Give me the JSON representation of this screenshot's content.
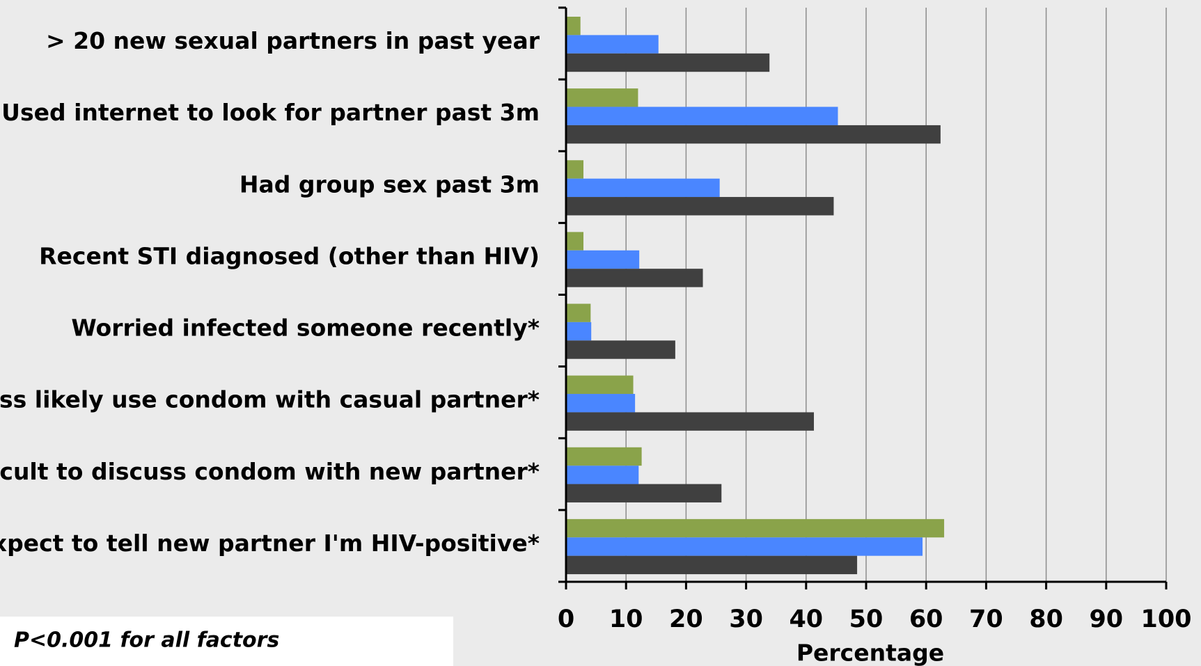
{
  "chart_data": {
    "type": "hbar",
    "categories": [
      "> 20 new sexual partners in past year",
      "Used internet to look for partner past 3m",
      "Had group sex past 3m",
      "Recent STI diagnosed (other than HIV)",
      "Worried infected someone recently*",
      "Less likely use condom with casual partner*",
      "Difficult to discuss condom with new partner*",
      "Expect to tell new partner I'm HIV-positive*"
    ],
    "series": [
      {
        "color": "#8aa34a",
        "values": [
          2.4,
          12.0,
          2.9,
          2.9,
          4.1,
          11.2,
          12.6,
          63.0
        ]
      },
      {
        "color": "#4a86ff",
        "values": [
          15.4,
          45.3,
          25.6,
          12.2,
          4.2,
          11.5,
          12.1,
          59.4
        ]
      },
      {
        "color": "#404040",
        "values": [
          33.9,
          62.4,
          44.6,
          22.8,
          18.2,
          41.3,
          25.9,
          48.5
        ]
      }
    ],
    "xlabel": "Percentage",
    "xlim": [
      0,
      100
    ],
    "xticks": [
      0,
      10,
      20,
      30,
      40,
      50,
      60,
      70,
      80,
      90,
      100
    ],
    "grid": true,
    "annotation": "P<0.001 for all factors"
  }
}
